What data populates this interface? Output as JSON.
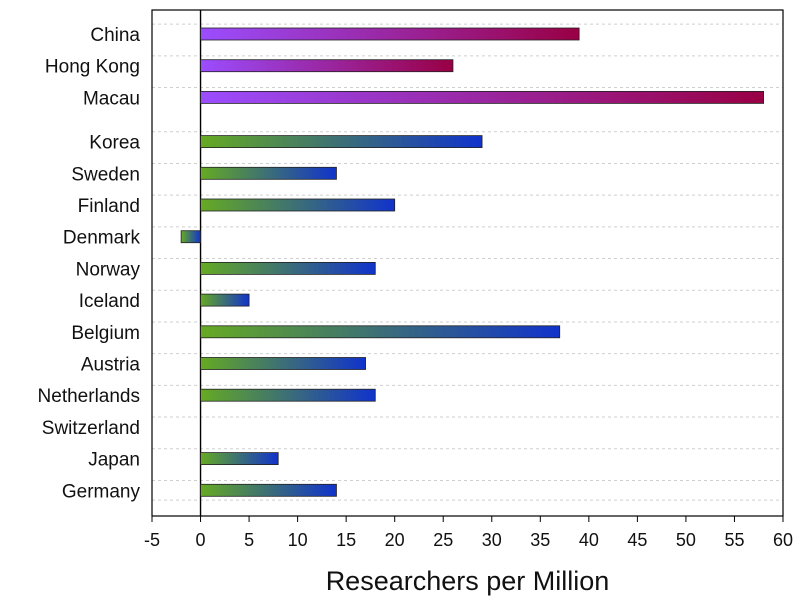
{
  "chart_data": {
    "type": "bar",
    "orientation": "horizontal",
    "title": "",
    "xlabel": "Researchers per Million",
    "ylabel": "",
    "xlim": [
      -5,
      60
    ],
    "xticks": [
      -5,
      0,
      5,
      10,
      15,
      20,
      25,
      30,
      35,
      40,
      45,
      50,
      55,
      60
    ],
    "grid": "horizontal dashed",
    "legend": "none",
    "categories": [
      "China",
      "Hong Kong",
      "Macau",
      "Korea",
      "Sweden",
      "Finland",
      "Denmark",
      "Norway",
      "Iceland",
      "Belgium",
      "Austria",
      "Netherlands",
      "Switzerland",
      "Japan",
      "Germany"
    ],
    "values": [
      39,
      26,
      58,
      29,
      14,
      20,
      -2,
      18,
      5,
      37,
      17,
      18,
      0,
      8,
      14
    ],
    "groups": [
      {
        "categories": [
          "China",
          "Hong Kong",
          "Macau"
        ],
        "gradient": [
          "#9b4dff",
          "#990044"
        ]
      },
      {
        "categories": [
          "Korea",
          "Sweden",
          "Finland",
          "Denmark",
          "Norway",
          "Iceland",
          "Belgium",
          "Austria",
          "Netherlands",
          "Switzerland",
          "Japan",
          "Germany"
        ],
        "gradient": [
          "#66aa22",
          "#1133cc"
        ]
      }
    ]
  }
}
